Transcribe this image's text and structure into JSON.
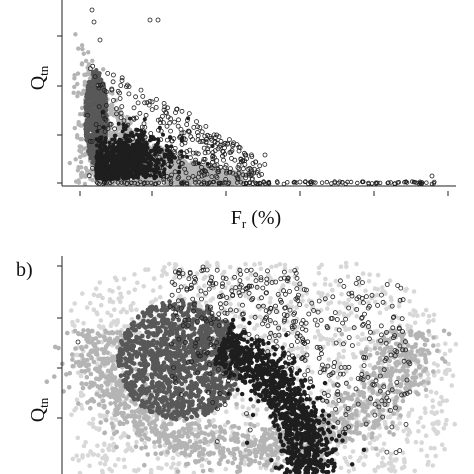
{
  "chart_data": [
    {
      "type": "scatter",
      "panel_label": "",
      "xlabel_main": "F",
      "xlabel_sub": "r",
      "xlabel_unit": " (%)",
      "ylabel_main": "Q",
      "ylabel_sub": "tn",
      "x_ticks": 6,
      "y_ticks": 4,
      "x_scale": "log",
      "y_scale": "log",
      "grid": false,
      "series": [
        {
          "color": "#585858",
          "shape": "filled-circle",
          "region": "dense upper-left lobe",
          "x": [
            0.08,
            0.14
          ],
          "y": [
            0.25,
            0.9
          ]
        },
        {
          "color": "#b4b4b4",
          "shape": "filled-circle",
          "region": "band along lower-left boundary",
          "x": [
            0.06,
            0.55
          ],
          "y": [
            0.0,
            0.85
          ]
        },
        {
          "color": "#1e1e1e",
          "shape": "filled-circle",
          "region": "central dense cluster",
          "x": [
            0.12,
            0.42
          ],
          "y": [
            0.0,
            0.35
          ]
        },
        {
          "color": "#202020",
          "shape": "open-circle",
          "region": "sparse outliers, upper and right",
          "x": [
            0.12,
            1.0
          ],
          "y": [
            0.0,
            0.8
          ]
        }
      ]
    },
    {
      "type": "scatter",
      "panel_label": "b)",
      "xlabel_main": "",
      "xlabel_sub": "",
      "xlabel_unit": "",
      "ylabel_main": "Q",
      "ylabel_sub": "tn",
      "y_ticks": 4,
      "y_scale": "log",
      "grid": false,
      "series": [
        {
          "color": "#d8d8d8",
          "shape": "filled-circle",
          "region": "broad background cloud",
          "x": [
            0.05,
            0.95
          ],
          "y": [
            0.0,
            1.0
          ]
        },
        {
          "color": "#b4b4b4",
          "shape": "filled-circle",
          "region": "curved band",
          "x": [
            0.15,
            0.85
          ],
          "y": [
            0.0,
            0.85
          ]
        },
        {
          "color": "#585858",
          "shape": "filled-circle",
          "region": "dense upper-left blob",
          "x": [
            0.12,
            0.48
          ],
          "y": [
            0.3,
            0.85
          ]
        },
        {
          "color": "#1e1e1e",
          "shape": "filled-circle",
          "region": "curved dark band, lower right",
          "x": [
            0.42,
            0.95
          ],
          "y": [
            0.0,
            0.6
          ]
        },
        {
          "color": "#202020",
          "shape": "open-circle",
          "region": "sparse outliers along top",
          "x": [
            0.35,
            0.98
          ],
          "y": [
            0.2,
            0.95
          ]
        }
      ]
    }
  ]
}
